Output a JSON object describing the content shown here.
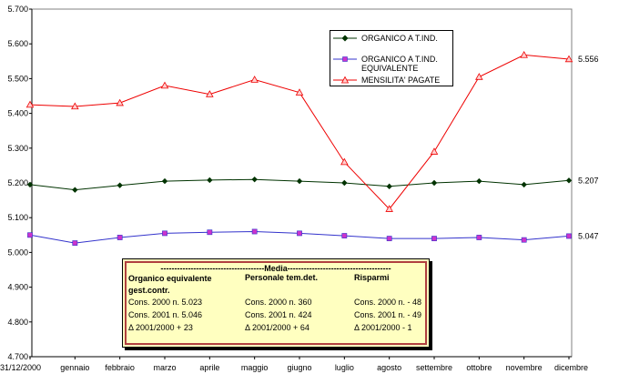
{
  "chart_data": {
    "type": "line",
    "categories": [
      "31/12/2000",
      "gennaio",
      "febbraio",
      "marzo",
      "aprile",
      "maggio",
      "giugno",
      "luglio",
      "agosto",
      "settembre",
      "ottobre",
      "novembre",
      "dicembre"
    ],
    "ylim": [
      4700,
      5700
    ],
    "yticks": [
      "4.700",
      "4.800",
      "4.900",
      "5.000",
      "5.100",
      "5.200",
      "5.300",
      "5.400",
      "5.500",
      "5.600",
      "5.700"
    ],
    "grid": false,
    "legend_position": "top-right",
    "series": [
      {
        "name": "ORGANICO A T.IND.",
        "color": "#003300",
        "marker": "diamond",
        "values": [
          5195,
          5180,
          5193,
          5205,
          5208,
          5210,
          5205,
          5200,
          5190,
          5200,
          5205,
          5195,
          5207
        ],
        "end_label": "5.207"
      },
      {
        "name": "ORGANICO A T.IND.\nEQUIVALENTE",
        "color": "#3333cc",
        "marker": "square",
        "values": [
          5050,
          5027,
          5043,
          5055,
          5058,
          5060,
          5055,
          5048,
          5040,
          5040,
          5043,
          5036,
          5047
        ],
        "end_label": "5.047"
      },
      {
        "name": "MENSILITA' PAGATE",
        "color": "#ee0000",
        "marker": "triangle",
        "values": [
          5425,
          5420,
          5430,
          5480,
          5455,
          5497,
          5460,
          5260,
          5125,
          5290,
          5505,
          5568,
          5556
        ],
        "end_label": "5.556"
      }
    ]
  },
  "media_box": {
    "title": "--------------------------------------Media--------------------------------------",
    "columns": [
      {
        "header": "Organico equivalente\ngest.contr.",
        "rows": [
          "Cons. 2000   n. 5.023",
          "Cons. 2001   n. 5.046",
          "Δ 2001/2000       + 23"
        ]
      },
      {
        "header": "Personale tem.det.",
        "rows": [
          "Cons. 2000   n. 360",
          "Cons. 2001   n. 424",
          "Δ 2001/2000      + 64"
        ]
      },
      {
        "header": "Risparmi",
        "rows": [
          "Cons. 2000   n. - 48",
          "Cons. 2001   n. - 49",
          "Δ 2001/2000       - 1"
        ]
      }
    ]
  }
}
